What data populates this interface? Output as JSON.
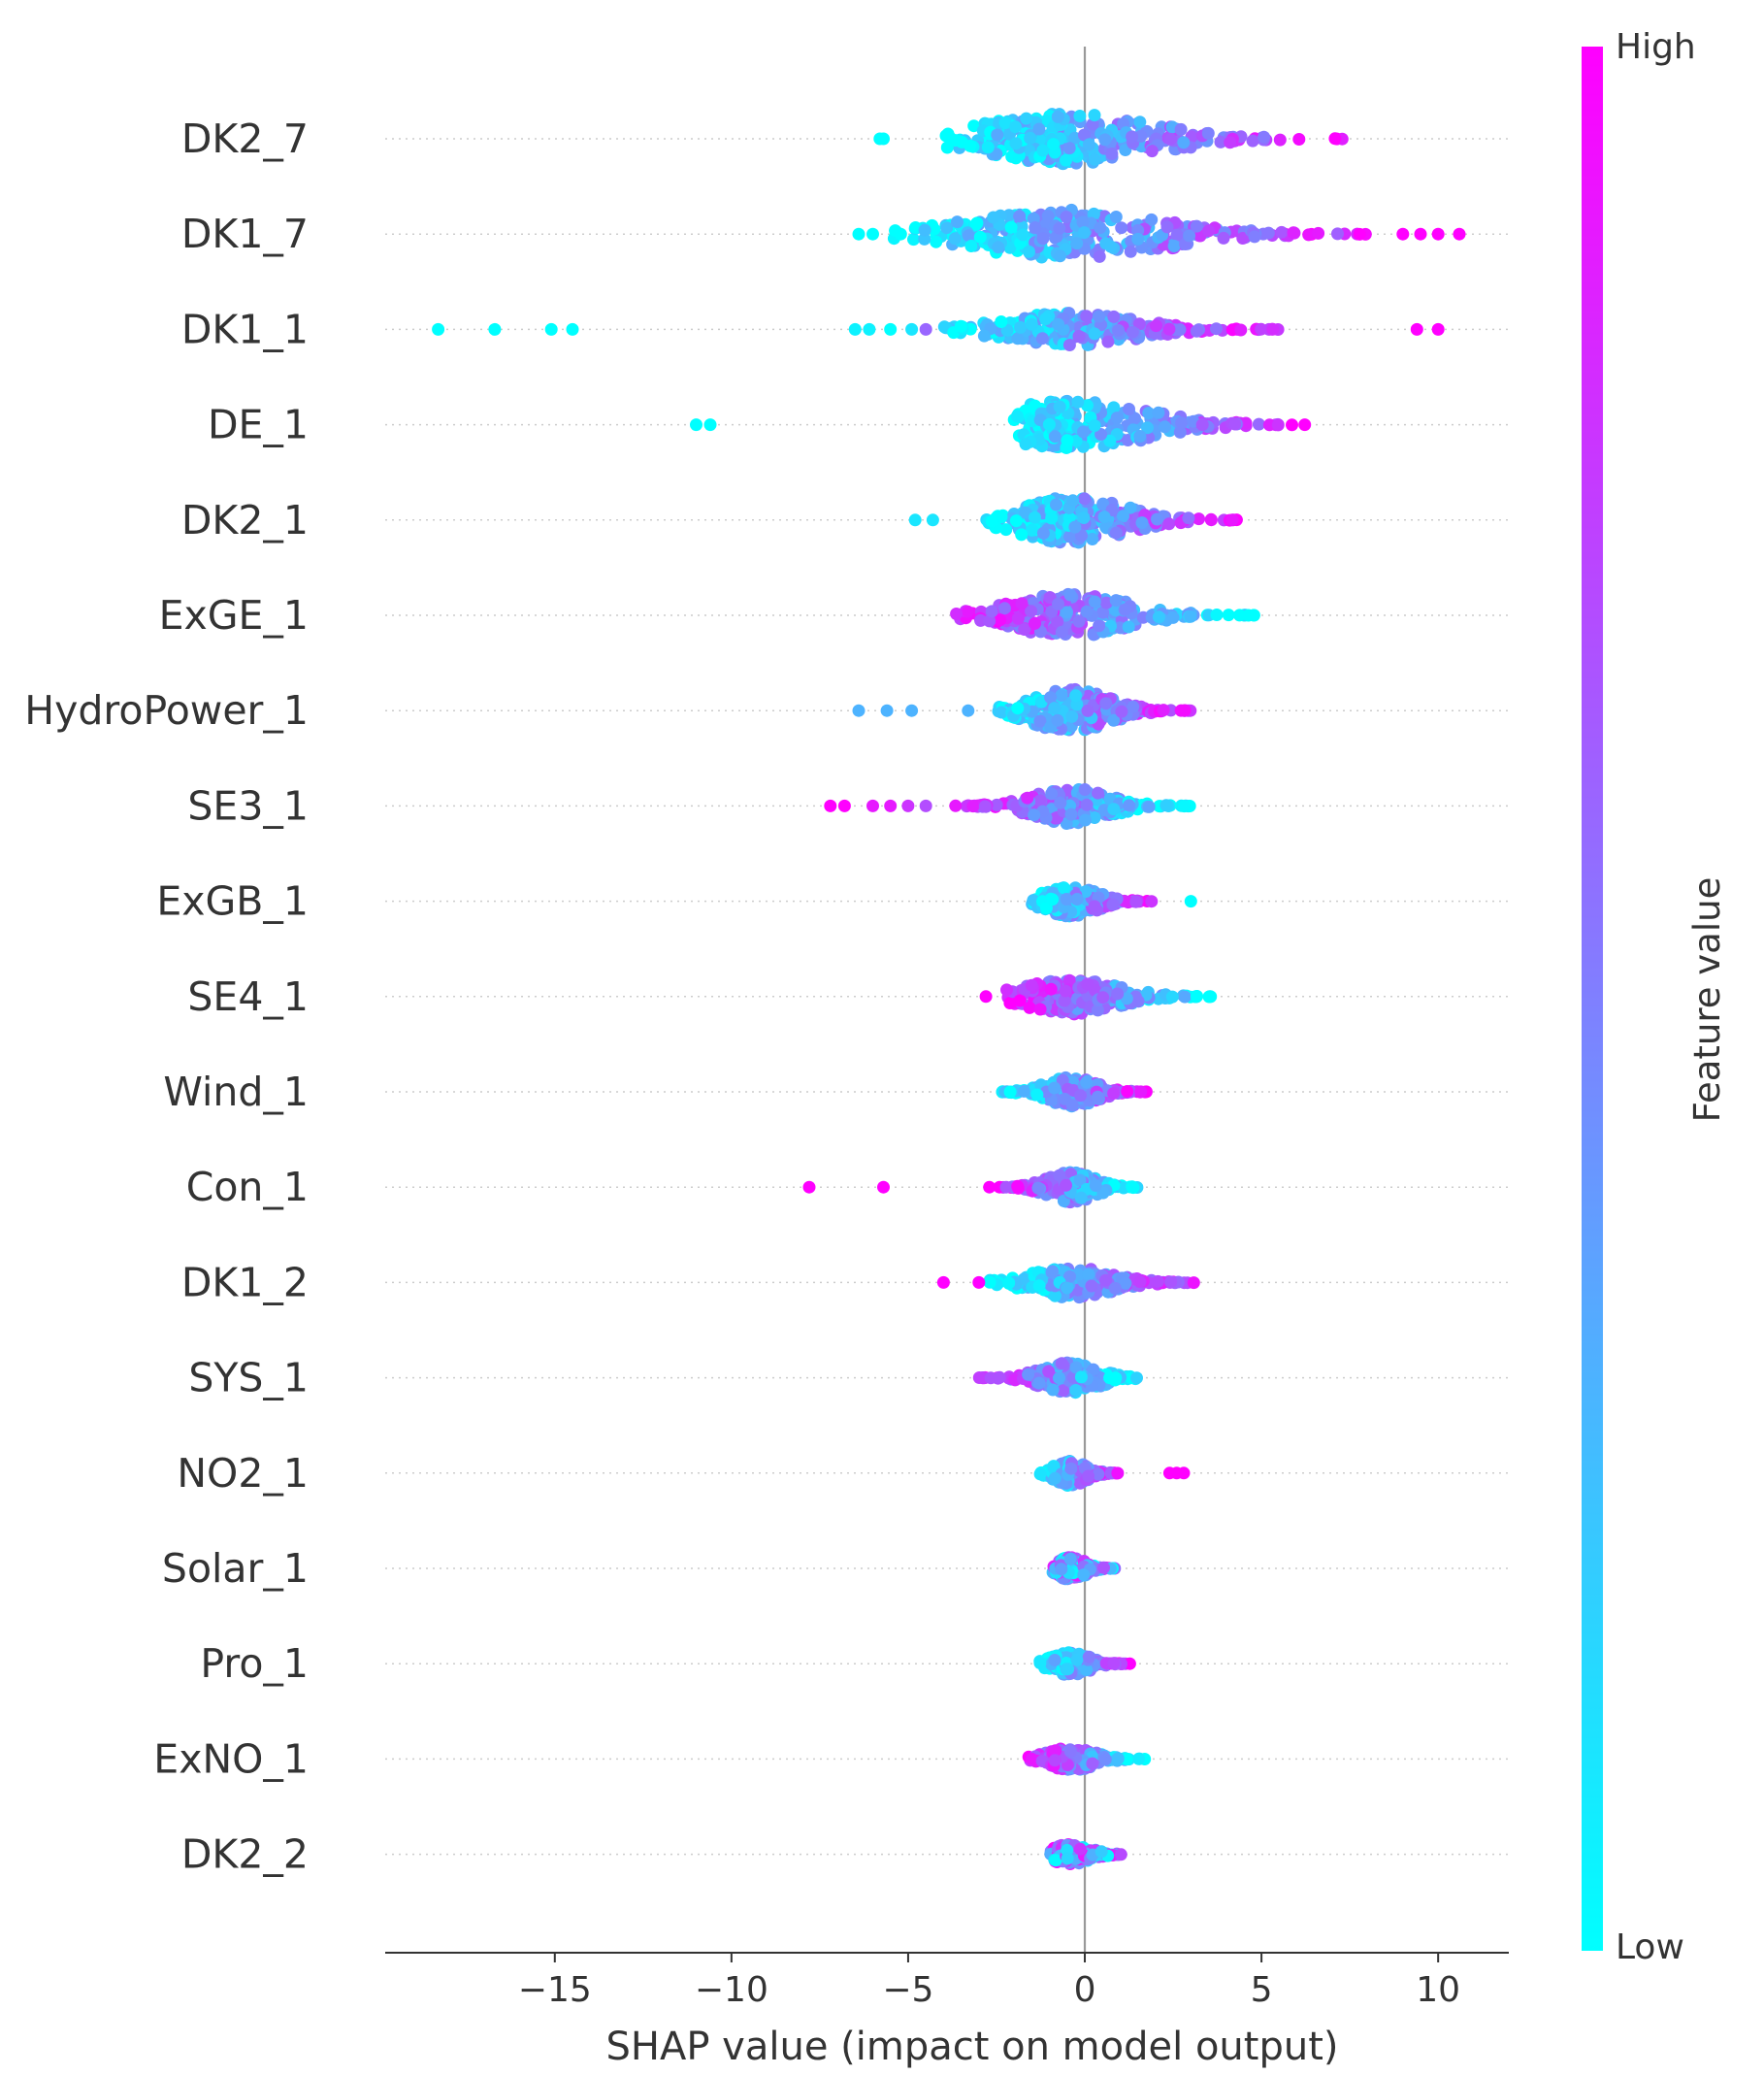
{
  "chart_data": {
    "type": "scatter",
    "subtype": "shap-beeswarm-summary",
    "xlabel": "SHAP value (impact on model output)",
    "xlim": [
      -19.8,
      12.0
    ],
    "xticks": [
      {
        "value": -15,
        "label": "−15"
      },
      {
        "value": -10,
        "label": "−10"
      },
      {
        "value": -5,
        "label": "−5"
      },
      {
        "value": 0,
        "label": "0"
      },
      {
        "value": 5,
        "label": "5"
      },
      {
        "value": 10,
        "label": "10"
      }
    ],
    "colorbar": {
      "title": "Feature value",
      "high_label": "High",
      "low_label": "Low",
      "high_color": "#ff00ff",
      "low_color": "#00ffff"
    },
    "features": [
      {
        "name": "DK2_7",
        "range": [
          -4.0,
          7.3
        ],
        "density": 1.0,
        "direction": "positive",
        "outliers": [
          [
            -5.8,
            0.0
          ],
          [
            -5.7,
            0.0
          ]
        ]
      },
      {
        "name": "DK1_7",
        "range": [
          -5.5,
          8.0
        ],
        "density": 1.0,
        "direction": "positive",
        "outliers": [
          [
            -6.4,
            0.0
          ],
          [
            -6.0,
            0.0
          ],
          [
            9.0,
            1.0
          ],
          [
            9.5,
            1.0
          ],
          [
            10.0,
            1.0
          ],
          [
            10.6,
            1.0
          ]
        ]
      },
      {
        "name": "DK1_1",
        "range": [
          -4.0,
          5.5
        ],
        "density": 0.65,
        "direction": "positive",
        "outliers": [
          [
            -18.3,
            0.0
          ],
          [
            -16.7,
            0.0
          ],
          [
            -15.1,
            0.0
          ],
          [
            -14.5,
            0.0
          ],
          [
            -6.5,
            0.05
          ],
          [
            -6.1,
            0.05
          ],
          [
            -5.5,
            0.0
          ],
          [
            -4.9,
            0.1
          ],
          [
            -4.5,
            0.6
          ],
          [
            9.4,
            1.0
          ],
          [
            10.0,
            1.0
          ]
        ]
      },
      {
        "name": "DE_1",
        "range": [
          -2.1,
          6.4
        ],
        "density": 0.95,
        "direction": "positive",
        "outliers": [
          [
            -11.0,
            0.0
          ],
          [
            -10.6,
            0.0
          ]
        ]
      },
      {
        "name": "DK2_1",
        "range": [
          -2.8,
          4.4
        ],
        "density": 0.9,
        "direction": "positive",
        "outliers": [
          [
            -4.8,
            0.1
          ],
          [
            -4.3,
            0.1
          ]
        ]
      },
      {
        "name": "ExGE_1",
        "range": [
          -3.7,
          4.8
        ],
        "density": 0.85,
        "direction": "negative",
        "outliers": []
      },
      {
        "name": "HydroPower_1",
        "range": [
          -2.7,
          3.0
        ],
        "density": 0.85,
        "direction": "positive",
        "outliers": [
          [
            -6.4,
            0.3
          ],
          [
            -5.6,
            0.3
          ],
          [
            -4.9,
            0.3
          ],
          [
            -3.3,
            0.3
          ]
        ]
      },
      {
        "name": "SE3_1",
        "range": [
          -3.7,
          3.0
        ],
        "density": 0.7,
        "direction": "negative",
        "outliers": [
          [
            -7.2,
            1.0
          ],
          [
            -6.8,
            1.0
          ],
          [
            -6.0,
            0.9
          ],
          [
            -5.5,
            0.9
          ],
          [
            -5.0,
            0.8
          ],
          [
            -4.5,
            0.7
          ]
        ]
      },
      {
        "name": "ExGB_1",
        "range": [
          -1.6,
          1.9
        ],
        "density": 0.6,
        "direction": "positive",
        "outliers": [
          [
            3.0,
            0.0
          ]
        ]
      },
      {
        "name": "SE4_1",
        "range": [
          -2.3,
          3.7
        ],
        "density": 0.7,
        "direction": "negative",
        "outliers": [
          [
            -2.8,
            1.0
          ]
        ]
      },
      {
        "name": "Wind_1",
        "range": [
          -2.4,
          1.8
        ],
        "density": 0.6,
        "direction": "positive",
        "outliers": []
      },
      {
        "name": "Con_1",
        "range": [
          -2.5,
          1.5
        ],
        "density": 0.6,
        "direction": "negative",
        "outliers": [
          [
            -7.8,
            1.0
          ],
          [
            -5.7,
            1.0
          ],
          [
            -2.7,
            1.0
          ]
        ]
      },
      {
        "name": "DK1_2",
        "range": [
          -2.7,
          3.3
        ],
        "density": 0.6,
        "direction": "positive",
        "outliers": [
          [
            -4.0,
            1.0
          ],
          [
            -3.0,
            1.0
          ]
        ]
      },
      {
        "name": "SYS_1",
        "range": [
          -3.0,
          1.5
        ],
        "density": 0.6,
        "direction": "negative",
        "outliers": []
      },
      {
        "name": "NO2_1",
        "range": [
          -1.3,
          1.0
        ],
        "density": 0.5,
        "direction": "positive",
        "outliers": [
          [
            2.4,
            1.0
          ],
          [
            2.6,
            1.0
          ],
          [
            2.8,
            1.0
          ]
        ]
      },
      {
        "name": "Solar_1",
        "range": [
          -1.0,
          0.9
        ],
        "density": 0.45,
        "direction": "mixed",
        "outliers": []
      },
      {
        "name": "Pro_1",
        "range": [
          -1.3,
          1.3
        ],
        "density": 0.45,
        "direction": "positive",
        "outliers": []
      },
      {
        "name": "ExNO_1",
        "range": [
          -1.6,
          1.8
        ],
        "density": 0.45,
        "direction": "negative",
        "outliers": []
      },
      {
        "name": "DK2_2",
        "range": [
          -1.0,
          1.3
        ],
        "density": 0.4,
        "direction": "mixed",
        "outliers": []
      }
    ]
  }
}
